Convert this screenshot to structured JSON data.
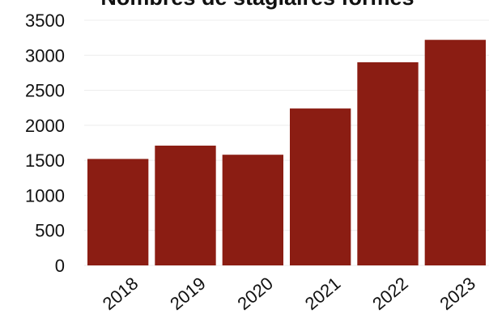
{
  "chart_data": {
    "type": "bar",
    "title": "Nombres de stagiaires formés",
    "xlabel": "",
    "ylabel": "",
    "categories": [
      "2018",
      "2019",
      "2020",
      "2021",
      "2022",
      "2023"
    ],
    "values": [
      1520,
      1710,
      1580,
      2240,
      2900,
      3220
    ],
    "ylim": [
      0,
      3500
    ],
    "yticks": [
      0,
      500,
      1000,
      1500,
      2000,
      2500,
      3000,
      3500
    ],
    "grid": true,
    "legend": "none",
    "colors": {
      "bar": "#8b1d13"
    }
  }
}
